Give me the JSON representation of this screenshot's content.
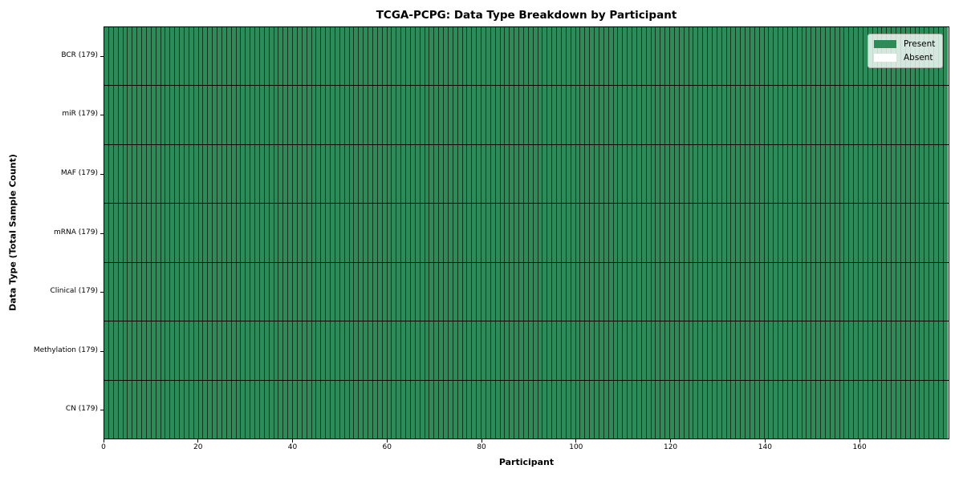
{
  "chart_data": {
    "type": "heatmap",
    "title": "TCGA-PCPG: Data Type Breakdown by Participant",
    "xlabel": "Participant",
    "ylabel": "Data Type (Total Sample Count)",
    "n_participants": 179,
    "x_range": [
      0,
      179
    ],
    "x_ticks": [
      0,
      20,
      40,
      60,
      80,
      100,
      120,
      140,
      160
    ],
    "rows": [
      {
        "label": "BCR (179)",
        "data_type": "BCR",
        "present_count": 179,
        "absent_count": 0
      },
      {
        "label": "miR (179)",
        "data_type": "miR",
        "present_count": 179,
        "absent_count": 0
      },
      {
        "label": "MAF (179)",
        "data_type": "MAF",
        "present_count": 179,
        "absent_count": 0
      },
      {
        "label": "mRNA (179)",
        "data_type": "mRNA",
        "present_count": 179,
        "absent_count": 0
      },
      {
        "label": "Clinical (179)",
        "data_type": "Clinical",
        "present_count": 179,
        "absent_count": 0
      },
      {
        "label": "Methylation (179)",
        "data_type": "Methylation",
        "present_count": 179,
        "absent_count": 0
      },
      {
        "label": "CN (179)",
        "data_type": "CN",
        "present_count": 179,
        "absent_count": 0
      }
    ],
    "legend": {
      "position": "upper right",
      "entries": [
        {
          "label": "Present",
          "color": "#2e8b57"
        },
        {
          "label": "Absent",
          "color": "#ffffff"
        }
      ]
    },
    "colors": {
      "present": "#2e8b57",
      "absent": "#ffffff",
      "cell_edge": "rgba(0,0,0,0.62)",
      "row_divider": "#000000",
      "spine": "#000000"
    },
    "grid": false
  }
}
